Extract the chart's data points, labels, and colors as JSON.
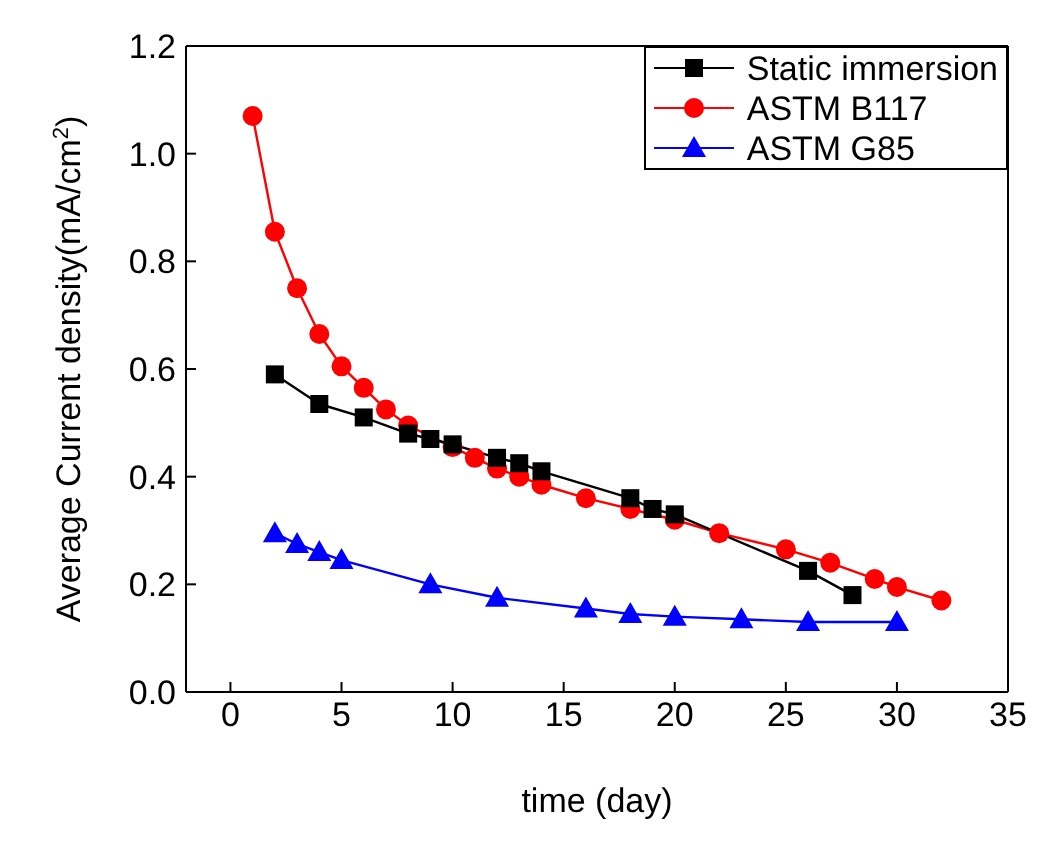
{
  "chart_data": {
    "type": "line",
    "xlabel": "time (day)",
    "ylabel": "Average Current density(mA/cm$^{2}$)",
    "xlim": [
      -2,
      35
    ],
    "xticks": [
      0,
      5,
      10,
      15,
      20,
      25,
      30,
      35
    ],
    "ylim": [
      0,
      1.2
    ],
    "yticks": [
      {
        "value": 0,
        "label": "0.0"
      },
      {
        "value": 0.2,
        "label": "0.2"
      },
      {
        "value": 0.4,
        "label": "0.4"
      },
      {
        "value": 0.6,
        "label": "0.6"
      },
      {
        "value": 0.8,
        "label": "0.8"
      },
      {
        "value": 1,
        "label": "1.0"
      },
      {
        "value": 1.2,
        "label": "1.2"
      }
    ],
    "legend": "top right",
    "grid": false,
    "series": [
      {
        "name": "Static immersion",
        "color": "#000000",
        "marker": "square",
        "x": [
          2,
          4,
          6,
          8,
          9,
          10,
          12,
          13,
          14,
          18,
          19,
          20,
          26,
          28
        ],
        "values": [
          0.59,
          0.535,
          0.51,
          0.48,
          0.47,
          0.46,
          0.435,
          0.425,
          0.41,
          0.36,
          0.34,
          0.33,
          0.225,
          0.18
        ]
      },
      {
        "name": "ASTM B117",
        "color": "#ff0000",
        "marker": "circle",
        "x": [
          1,
          2,
          3,
          4,
          5,
          6,
          7,
          8,
          10,
          11,
          12,
          13,
          14,
          16,
          18,
          20,
          22,
          25,
          27,
          29,
          30,
          32
        ],
        "values": [
          1.07,
          0.855,
          0.75,
          0.665,
          0.605,
          0.565,
          0.525,
          0.495,
          0.455,
          0.435,
          0.415,
          0.4,
          0.385,
          0.36,
          0.34,
          0.32,
          0.295,
          0.265,
          0.24,
          0.21,
          0.195,
          0.17
        ]
      },
      {
        "name": "ASTM G85",
        "color": "#0000ff",
        "marker": "triangle",
        "x": [
          2,
          3,
          4,
          5,
          9,
          12,
          16,
          18,
          20,
          23,
          26,
          30
        ],
        "values": [
          0.295,
          0.275,
          0.26,
          0.245,
          0.2,
          0.175,
          0.155,
          0.145,
          0.14,
          0.135,
          0.13,
          0.13
        ]
      }
    ]
  }
}
